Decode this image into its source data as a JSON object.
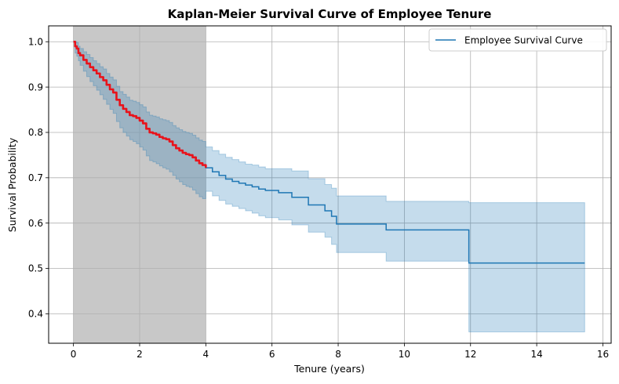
{
  "chart_data": {
    "type": "line",
    "title": "Kaplan-Meier Survival Curve of Employee Tenure",
    "xlabel": "Tenure (years)",
    "ylabel": "Survival Probability",
    "xlim": [
      -0.75,
      16.25
    ],
    "ylim": [
      0.335,
      1.035
    ],
    "xticks": [
      0,
      2,
      4,
      6,
      8,
      10,
      12,
      14,
      16
    ],
    "yticks": [
      0.4,
      0.5,
      0.6,
      0.7,
      0.8,
      0.9,
      1.0
    ],
    "xtick_labels": [
      "0",
      "2",
      "4",
      "6",
      "8",
      "10",
      "12",
      "14",
      "16"
    ],
    "ytick_labels": [
      "0.4",
      "0.5",
      "0.6",
      "0.7",
      "0.8",
      "0.9",
      "1.0"
    ],
    "grid": true,
    "legend_position": "top-right",
    "shaded_region": {
      "x_start": 0,
      "x_end": 4,
      "color": "#c8c8c8"
    },
    "series": [
      {
        "name": "Employee Survival Curve",
        "color": "#1f77b4",
        "ci_color": "#1f77b4",
        "x": [
          0,
          0.05,
          0.1,
          0.15,
          0.2,
          0.3,
          0.4,
          0.5,
          0.6,
          0.7,
          0.8,
          0.9,
          1.0,
          1.1,
          1.2,
          1.3,
          1.4,
          1.5,
          1.6,
          1.7,
          1.8,
          1.9,
          2.0,
          2.1,
          2.2,
          2.3,
          2.4,
          2.5,
          2.6,
          2.7,
          2.8,
          2.9,
          3.0,
          3.1,
          3.2,
          3.3,
          3.4,
          3.5,
          3.6,
          3.7,
          3.8,
          3.9,
          4.0,
          4.2,
          4.4,
          4.6,
          4.8,
          5.0,
          5.2,
          5.4,
          5.6,
          5.8,
          6.2,
          6.6,
          7.1,
          7.6,
          7.8,
          7.95,
          9.45,
          11.95,
          15.45
        ],
        "y": [
          1.0,
          0.99,
          0.985,
          0.975,
          0.97,
          0.96,
          0.952,
          0.944,
          0.937,
          0.93,
          0.922,
          0.915,
          0.905,
          0.895,
          0.888,
          0.872,
          0.86,
          0.852,
          0.845,
          0.838,
          0.836,
          0.832,
          0.826,
          0.82,
          0.808,
          0.8,
          0.798,
          0.795,
          0.79,
          0.787,
          0.785,
          0.78,
          0.772,
          0.765,
          0.76,
          0.755,
          0.752,
          0.75,
          0.745,
          0.738,
          0.732,
          0.728,
          0.722,
          0.713,
          0.705,
          0.697,
          0.692,
          0.688,
          0.684,
          0.68,
          0.675,
          0.672,
          0.667,
          0.657,
          0.64,
          0.627,
          0.615,
          0.598,
          0.585,
          0.512,
          0.512
        ],
        "ci_lower": [
          1.0,
          0.975,
          0.968,
          0.958,
          0.948,
          0.935,
          0.923,
          0.912,
          0.903,
          0.893,
          0.883,
          0.873,
          0.862,
          0.851,
          0.842,
          0.824,
          0.81,
          0.8,
          0.792,
          0.784,
          0.78,
          0.775,
          0.768,
          0.761,
          0.748,
          0.738,
          0.735,
          0.731,
          0.726,
          0.722,
          0.719,
          0.713,
          0.705,
          0.697,
          0.691,
          0.685,
          0.681,
          0.679,
          0.673,
          0.665,
          0.658,
          0.654,
          0.67,
          0.66,
          0.65,
          0.642,
          0.637,
          0.632,
          0.627,
          0.622,
          0.616,
          0.612,
          0.607,
          0.596,
          0.58,
          0.569,
          0.553,
          0.535,
          0.516,
          0.36,
          0.36
        ],
        "ci_upper": [
          1.0,
          1.0,
          0.998,
          0.99,
          0.985,
          0.978,
          0.972,
          0.965,
          0.958,
          0.952,
          0.945,
          0.94,
          0.93,
          0.922,
          0.916,
          0.902,
          0.89,
          0.884,
          0.878,
          0.871,
          0.869,
          0.866,
          0.861,
          0.856,
          0.845,
          0.838,
          0.836,
          0.834,
          0.83,
          0.828,
          0.826,
          0.822,
          0.815,
          0.81,
          0.806,
          0.802,
          0.8,
          0.798,
          0.794,
          0.788,
          0.783,
          0.78,
          0.768,
          0.76,
          0.752,
          0.745,
          0.74,
          0.735,
          0.73,
          0.728,
          0.724,
          0.72,
          0.72,
          0.715,
          0.698,
          0.685,
          0.677,
          0.66,
          0.648,
          0.645,
          0.645
        ]
      },
      {
        "name": "",
        "color": "#e8131b",
        "x": [
          0,
          0.05,
          0.1,
          0.15,
          0.2,
          0.3,
          0.4,
          0.5,
          0.6,
          0.7,
          0.8,
          0.9,
          1.0,
          1.1,
          1.2,
          1.3,
          1.4,
          1.5,
          1.6,
          1.7,
          1.8,
          1.9,
          2.0,
          2.1,
          2.2,
          2.3,
          2.4,
          2.5,
          2.6,
          2.7,
          2.8,
          2.9,
          3.0,
          3.1,
          3.2,
          3.3,
          3.4,
          3.5,
          3.6,
          3.7,
          3.8,
          3.9,
          4.0
        ],
        "y": [
          1.0,
          0.99,
          0.985,
          0.975,
          0.97,
          0.96,
          0.952,
          0.944,
          0.937,
          0.93,
          0.922,
          0.915,
          0.905,
          0.895,
          0.888,
          0.872,
          0.86,
          0.852,
          0.845,
          0.838,
          0.836,
          0.832,
          0.826,
          0.82,
          0.808,
          0.8,
          0.798,
          0.795,
          0.79,
          0.787,
          0.785,
          0.78,
          0.772,
          0.765,
          0.76,
          0.755,
          0.752,
          0.75,
          0.745,
          0.738,
          0.732,
          0.728,
          0.722
        ]
      }
    ]
  }
}
